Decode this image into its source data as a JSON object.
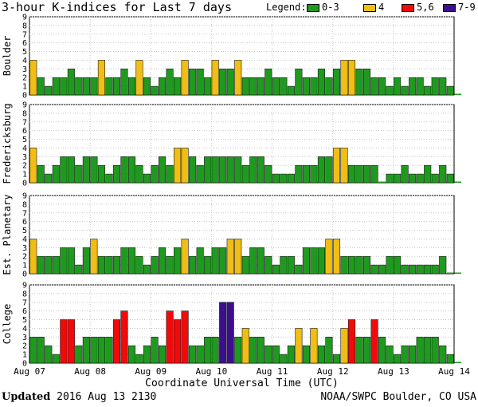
{
  "title": "3-hour K-indices for Last 7 days",
  "legend": {
    "label": "Legend:",
    "items": [
      {
        "label": "0-3",
        "color": "#1e9b1e"
      },
      {
        "label": "4",
        "color": "#f0be14"
      },
      {
        "label": "5,6",
        "color": "#f00a0a"
      },
      {
        "label": "7-9",
        "color": "#3c0f8c"
      }
    ]
  },
  "footer": {
    "updated_label": "Updated",
    "updated_value": "2016 Aug 13 2130",
    "credit": "NOAA/SWPC Boulder, CO USA"
  },
  "chart_data": [
    {
      "type": "bar",
      "ylabel": "Boulder",
      "ylim": [
        0,
        9
      ],
      "yticks": [
        "0",
        "1",
        "2",
        "3",
        "4",
        "5",
        "6",
        "7",
        "8",
        "9"
      ],
      "xlabel": "Coordinate Universal Time (UTC)",
      "xticks": [
        "Aug 07",
        "Aug 08",
        "Aug 09",
        "Aug 10",
        "Aug 11",
        "Aug 12",
        "Aug 13",
        "Aug 14"
      ],
      "values": [
        4,
        2,
        1,
        2,
        2,
        3,
        2,
        2,
        2,
        4,
        2,
        2,
        3,
        2,
        4,
        2,
        1,
        2,
        3,
        2,
        4,
        3,
        3,
        2,
        4,
        3,
        3,
        4,
        2,
        2,
        2,
        3,
        2,
        2,
        1,
        3,
        2,
        2,
        3,
        2,
        3,
        4,
        4,
        3,
        3,
        2,
        2,
        1,
        2,
        1,
        2,
        2,
        1,
        2,
        2,
        1,
        0
      ]
    },
    {
      "type": "bar",
      "ylabel": "Fredericksburg",
      "ylim": [
        0,
        9
      ],
      "yticks": [
        "0",
        "1",
        "2",
        "3",
        "4",
        "5",
        "6",
        "7",
        "8",
        "9"
      ],
      "values": [
        4,
        2,
        1,
        2,
        3,
        3,
        2,
        3,
        3,
        2,
        1,
        2,
        3,
        3,
        2,
        1,
        2,
        3,
        2,
        4,
        4,
        3,
        2,
        3,
        3,
        3,
        3,
        3,
        2,
        3,
        3,
        2,
        1,
        1,
        1,
        2,
        2,
        2,
        3,
        3,
        4,
        4,
        2,
        2,
        2,
        2,
        0,
        1,
        1,
        2,
        1,
        1,
        2,
        1,
        2,
        1,
        0
      ]
    },
    {
      "type": "bar",
      "ylabel": "Est. Planetary",
      "ylim": [
        0,
        9
      ],
      "yticks": [
        "0",
        "1",
        "2",
        "3",
        "4",
        "5",
        "6",
        "7",
        "8",
        "9"
      ],
      "values": [
        4,
        2,
        2,
        2,
        3,
        3,
        1,
        3,
        4,
        2,
        2,
        2,
        3,
        3,
        2,
        1,
        2,
        3,
        2,
        3,
        4,
        2,
        3,
        2,
        3,
        3,
        4,
        4,
        2,
        3,
        3,
        2,
        1,
        2,
        2,
        1,
        3,
        3,
        3,
        4,
        4,
        2,
        2,
        2,
        2,
        1,
        1,
        2,
        2,
        1,
        1,
        1,
        1,
        1,
        2,
        0,
        0
      ]
    },
    {
      "type": "bar",
      "ylabel": "College",
      "ylim": [
        0,
        9
      ],
      "yticks": [
        "0",
        "1",
        "2",
        "3",
        "4",
        "5",
        "6",
        "7",
        "8",
        "9"
      ],
      "values": [
        3,
        3,
        2,
        1,
        5,
        5,
        2,
        3,
        3,
        3,
        3,
        5,
        6,
        2,
        1,
        2,
        3,
        2,
        6,
        5,
        6,
        2,
        2,
        3,
        3,
        7,
        7,
        3,
        4,
        3,
        3,
        2,
        2,
        1,
        2,
        4,
        2,
        4,
        2,
        3,
        1,
        4,
        5,
        3,
        3,
        5,
        3,
        2,
        1,
        2,
        2,
        3,
        3,
        3,
        2,
        1,
        0
      ]
    }
  ]
}
